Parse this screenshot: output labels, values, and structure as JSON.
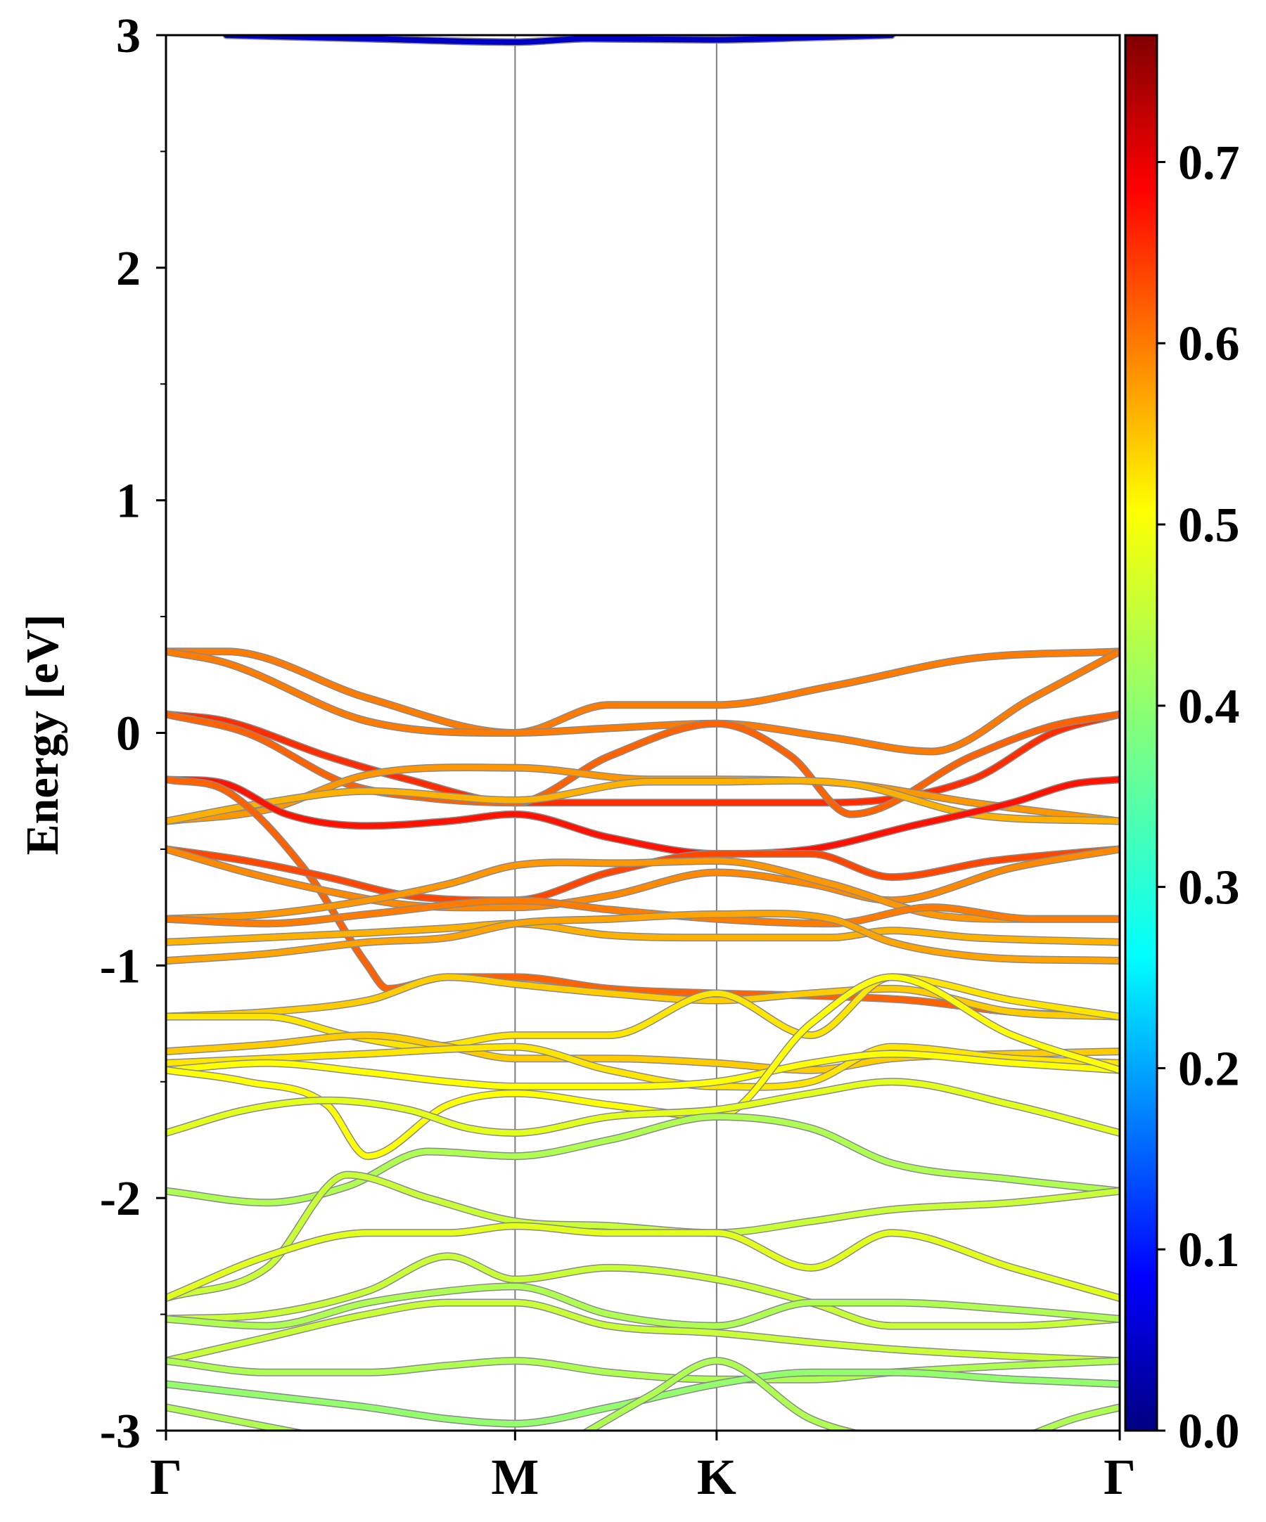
{
  "chart_data": {
    "type": "line",
    "title": "",
    "xlabel": "",
    "ylabel": "Energy [eV]",
    "ylim": [
      -3,
      3
    ],
    "kpoints": [
      "Γ",
      "M",
      "K",
      "Γ"
    ],
    "kpath_positions": [
      0,
      1.7320508,
      2.7320508,
      4.7320508
    ],
    "yticks": [
      "3",
      "2",
      "1",
      "0",
      "-1",
      "-2",
      "-3"
    ],
    "grid": false,
    "colorbar": {
      "colormap": "jet",
      "range": [
        0,
        0.77
      ],
      "ticks": [
        "0.0",
        "0.1",
        "0.2",
        "0.3",
        "0.4",
        "0.5",
        "0.6",
        "0.7"
      ]
    },
    "series": [
      {
        "weight": 0.05,
        "x": [
          0.3,
          1.0,
          1.732,
          2.1,
          2.732,
          3.2,
          3.6
        ],
        "y": [
          3.0,
          2.985,
          2.97,
          2.985,
          2.98,
          2.99,
          3.0
        ]
      },
      {
        "weight": 0.58,
        "x": [
          0,
          0.3,
          1.0,
          1.732,
          2.2,
          2.732,
          3.3,
          4.0,
          4.732
        ],
        "y": [
          0.35,
          0.35,
          0.15,
          0.0,
          0.12,
          0.12,
          0.2,
          0.32,
          0.35
        ]
      },
      {
        "weight": 0.58,
        "x": [
          0,
          0.3,
          1.0,
          1.732,
          2.2,
          2.732,
          3.3,
          3.8,
          4.3,
          4.732
        ],
        "y": [
          0.35,
          0.3,
          0.05,
          0.0,
          0.02,
          0.04,
          -0.02,
          -0.08,
          0.15,
          0.35
        ]
      },
      {
        "weight": 0.64,
        "x": [
          0,
          0.3,
          0.8,
          1.2,
          1.732,
          2.2,
          2.732,
          3.3,
          4.0,
          4.4,
          4.732
        ],
        "y": [
          0.08,
          0.05,
          -0.1,
          -0.2,
          -0.3,
          -0.3,
          -0.3,
          -0.3,
          -0.2,
          0.0,
          0.08
        ]
      },
      {
        "weight": 0.6,
        "x": [
          0,
          0.4,
          0.9,
          1.3,
          1.732,
          2.2,
          2.732,
          3.1,
          3.4,
          4.0,
          4.4,
          4.732
        ],
        "y": [
          0.08,
          0.0,
          -0.22,
          -0.28,
          -0.3,
          -0.1,
          0.04,
          -0.1,
          -0.35,
          -0.1,
          0.03,
          0.08
        ]
      },
      {
        "weight": 0.56,
        "x": [
          0,
          0.5,
          1.0,
          1.732,
          2.4,
          2.732,
          3.4,
          4.0,
          4.732
        ],
        "y": [
          -0.38,
          -0.33,
          -0.18,
          -0.15,
          -0.2,
          -0.2,
          -0.22,
          -0.3,
          -0.38
        ]
      },
      {
        "weight": 0.54,
        "x": [
          0,
          0.5,
          1.0,
          1.732,
          2.4,
          2.732,
          3.4,
          4.0,
          4.732
        ],
        "y": [
          -0.38,
          -0.3,
          -0.25,
          -0.29,
          -0.21,
          -0.21,
          -0.22,
          -0.35,
          -0.38
        ]
      },
      {
        "weight": 0.66,
        "x": [
          0,
          0.3,
          0.6,
          1.0,
          1.4,
          1.732,
          2.2,
          2.732,
          3.2,
          3.7,
          4.2,
          4.5,
          4.732
        ],
        "y": [
          -0.2,
          -0.22,
          -0.35,
          -0.4,
          -0.38,
          -0.35,
          -0.45,
          -0.52,
          -0.5,
          -0.4,
          -0.3,
          -0.22,
          -0.2
        ]
      },
      {
        "weight": 0.6,
        "x": [
          0,
          0.3,
          0.7,
          1.0,
          1.1,
          1.4,
          1.732,
          2.2,
          2.732,
          3.2,
          3.7,
          4.2,
          4.732
        ],
        "y": [
          -0.2,
          -0.25,
          -0.6,
          -1.0,
          -1.1,
          -1.05,
          -1.05,
          -1.1,
          -1.12,
          -1.13,
          -1.15,
          -1.2,
          -1.22
        ]
      },
      {
        "weight": 0.62,
        "x": [
          0,
          0.4,
          0.8,
          1.2,
          1.732,
          2.2,
          2.732,
          3.2,
          3.6,
          4.1,
          4.732
        ],
        "y": [
          -0.5,
          -0.55,
          -0.62,
          -0.7,
          -0.72,
          -0.6,
          -0.52,
          -0.52,
          -0.62,
          -0.55,
          -0.5
        ]
      },
      {
        "weight": 0.57,
        "x": [
          0,
          0.4,
          0.8,
          1.2,
          1.732,
          2.2,
          2.732,
          3.2,
          3.6,
          4.2,
          4.732
        ],
        "y": [
          -0.5,
          -0.6,
          -0.68,
          -0.74,
          -0.75,
          -0.7,
          -0.6,
          -0.65,
          -0.72,
          -0.58,
          -0.5
        ]
      },
      {
        "weight": 0.56,
        "x": [
          0,
          0.5,
          1.0,
          1.4,
          1.732,
          2.3,
          2.732,
          3.3,
          3.8,
          4.2,
          4.732
        ],
        "y": [
          -0.8,
          -0.78,
          -0.72,
          -0.65,
          -0.57,
          -0.56,
          -0.55,
          -0.65,
          -0.78,
          -0.8,
          -0.8
        ]
      },
      {
        "weight": 0.58,
        "x": [
          0,
          0.5,
          1.0,
          1.732,
          2.2,
          2.732,
          3.3,
          3.8,
          4.3,
          4.732
        ],
        "y": [
          -0.8,
          -0.82,
          -0.78,
          -0.72,
          -0.76,
          -0.8,
          -0.82,
          -0.75,
          -0.8,
          -0.8
        ]
      },
      {
        "weight": 0.54,
        "x": [
          0,
          0.5,
          1.0,
          1.4,
          1.732,
          2.2,
          2.732,
          3.3,
          3.6,
          4.0,
          4.732
        ],
        "y": [
          -0.9,
          -0.88,
          -0.86,
          -0.84,
          -0.82,
          -0.87,
          -0.88,
          -0.88,
          -0.85,
          -0.88,
          -0.9
        ]
      },
      {
        "weight": 0.55,
        "x": [
          0,
          0.5,
          1.0,
          1.4,
          1.732,
          2.2,
          2.732,
          3.3,
          3.6,
          4.0,
          4.732
        ],
        "y": [
          -0.98,
          -0.95,
          -0.9,
          -0.88,
          -0.82,
          -0.8,
          -0.78,
          -0.8,
          -0.9,
          -0.96,
          -0.98
        ]
      },
      {
        "weight": 0.52,
        "x": [
          0,
          0.5,
          1.0,
          1.4,
          1.732,
          2.2,
          2.732,
          3.2,
          3.6,
          4.2,
          4.732
        ],
        "y": [
          -1.22,
          -1.2,
          -1.15,
          -1.05,
          -1.08,
          -1.12,
          -1.15,
          -1.12,
          -1.1,
          -1.2,
          -1.22
        ]
      },
      {
        "weight": 0.5,
        "x": [
          0,
          0.5,
          0.9,
          1.3,
          1.732,
          2.2,
          2.732,
          3.2,
          3.6,
          4.2,
          4.732
        ],
        "y": [
          -1.22,
          -1.22,
          -1.3,
          -1.35,
          -1.3,
          -1.3,
          -1.12,
          -1.3,
          -1.05,
          -1.15,
          -1.22
        ]
      },
      {
        "weight": 0.52,
        "x": [
          0,
          0.5,
          1.0,
          1.4,
          1.732,
          2.2,
          2.732,
          3.2,
          3.6,
          4.2,
          4.732
        ],
        "y": [
          -1.37,
          -1.34,
          -1.3,
          -1.35,
          -1.4,
          -1.4,
          -1.42,
          -1.45,
          -1.4,
          -1.38,
          -1.37
        ]
      },
      {
        "weight": 0.5,
        "x": [
          0,
          0.5,
          1.0,
          1.4,
          1.732,
          2.2,
          2.732,
          3.2,
          3.6,
          4.2,
          4.732
        ],
        "y": [
          -1.42,
          -1.4,
          -1.38,
          -1.36,
          -1.35,
          -1.45,
          -1.52,
          -1.5,
          -1.35,
          -1.4,
          -1.42
        ]
      },
      {
        "weight": 0.48,
        "x": [
          0,
          0.5,
          1.0,
          1.4,
          1.732,
          2.2,
          2.732,
          3.2,
          3.6,
          4.2,
          4.732
        ],
        "y": [
          -1.45,
          -1.42,
          -1.46,
          -1.5,
          -1.52,
          -1.52,
          -1.5,
          -1.42,
          -1.38,
          -1.42,
          -1.45
        ]
      },
      {
        "weight": 0.48,
        "x": [
          0,
          0.4,
          0.8,
          1.0,
          1.4,
          1.732,
          2.2,
          2.732,
          3.2,
          3.6,
          4.2,
          4.732
        ],
        "y": [
          -1.45,
          -1.5,
          -1.6,
          -1.82,
          -1.6,
          -1.55,
          -1.6,
          -1.65,
          -1.25,
          -1.05,
          -1.3,
          -1.45
        ]
      },
      {
        "weight": 0.46,
        "x": [
          0,
          0.4,
          0.8,
          1.2,
          1.5,
          1.732,
          2.2,
          2.732,
          3.2,
          3.6,
          4.2,
          4.732
        ],
        "y": [
          -1.72,
          -1.62,
          -1.58,
          -1.62,
          -1.7,
          -1.72,
          -1.65,
          -1.62,
          -1.55,
          -1.5,
          -1.6,
          -1.72
        ]
      },
      {
        "weight": 0.42,
        "x": [
          0,
          0.5,
          0.9,
          1.3,
          1.732,
          2.2,
          2.732,
          3.2,
          3.6,
          4.2,
          4.732
        ],
        "y": [
          -1.97,
          -2.02,
          -1.95,
          -1.8,
          -1.82,
          -1.75,
          -1.65,
          -1.7,
          -1.85,
          -1.92,
          -1.97
        ]
      },
      {
        "weight": 0.44,
        "x": [
          0,
          0.5,
          0.9,
          1.3,
          1.732,
          2.2,
          2.732,
          3.2,
          3.6,
          4.2,
          4.732
        ],
        "y": [
          -2.43,
          -2.3,
          -1.9,
          -2.0,
          -2.1,
          -2.12,
          -2.15,
          -2.1,
          -2.05,
          -2.02,
          -1.97
        ]
      },
      {
        "weight": 0.46,
        "x": [
          0,
          0.5,
          1.0,
          1.4,
          1.732,
          2.2,
          2.732,
          3.2,
          3.6,
          4.2,
          4.732
        ],
        "y": [
          -2.43,
          -2.25,
          -2.15,
          -2.15,
          -2.12,
          -2.15,
          -2.15,
          -2.3,
          -2.15,
          -2.3,
          -2.43
        ]
      },
      {
        "weight": 0.44,
        "x": [
          0,
          0.5,
          1.0,
          1.4,
          1.732,
          2.2,
          2.732,
          3.2,
          3.6,
          4.2,
          4.732
        ],
        "y": [
          -2.52,
          -2.5,
          -2.4,
          -2.25,
          -2.35,
          -2.3,
          -2.35,
          -2.45,
          -2.55,
          -2.55,
          -2.52
        ]
      },
      {
        "weight": 0.42,
        "x": [
          0,
          0.5,
          1.0,
          1.4,
          1.732,
          2.2,
          2.732,
          3.2,
          3.6,
          4.2,
          4.732
        ],
        "y": [
          -2.52,
          -2.55,
          -2.45,
          -2.4,
          -2.38,
          -2.5,
          -2.55,
          -2.45,
          -2.45,
          -2.48,
          -2.52
        ]
      },
      {
        "weight": 0.44,
        "x": [
          0,
          0.5,
          1.0,
          1.4,
          1.732,
          2.2,
          2.732,
          3.2,
          3.6,
          4.2,
          4.732
        ],
        "y": [
          -2.7,
          -2.6,
          -2.5,
          -2.45,
          -2.45,
          -2.55,
          -2.58,
          -2.62,
          -2.65,
          -2.68,
          -2.7
        ]
      },
      {
        "weight": 0.42,
        "x": [
          0,
          0.5,
          1.0,
          1.4,
          1.732,
          2.2,
          2.732,
          3.2,
          3.6,
          4.2,
          4.732
        ],
        "y": [
          -2.7,
          -2.75,
          -2.75,
          -2.72,
          -2.7,
          -2.75,
          -2.78,
          -2.78,
          -2.75,
          -2.72,
          -2.7
        ]
      },
      {
        "weight": 0.4,
        "x": [
          0,
          0.5,
          1.0,
          1.4,
          1.732,
          2.2,
          2.732,
          3.2,
          3.6,
          4.2,
          4.732
        ],
        "y": [
          -2.8,
          -2.85,
          -2.9,
          -2.95,
          -2.97,
          -2.9,
          -2.8,
          -2.75,
          -2.75,
          -2.78,
          -2.8
        ]
      },
      {
        "weight": 0.42,
        "x": [
          0,
          0.3,
          0.6,
          0.9
        ],
        "y": [
          -2.9,
          -2.95,
          -3.0,
          -3.05
        ]
      },
      {
        "weight": 0.42,
        "x": [
          2.0,
          2.4,
          2.732,
          3.2,
          3.6
        ],
        "y": [
          -3.05,
          -2.85,
          -2.7,
          -2.95,
          -3.05
        ]
      },
      {
        "weight": 0.42,
        "x": [
          4.2,
          4.5,
          4.732
        ],
        "y": [
          -3.05,
          -2.95,
          -2.9
        ]
      }
    ]
  }
}
